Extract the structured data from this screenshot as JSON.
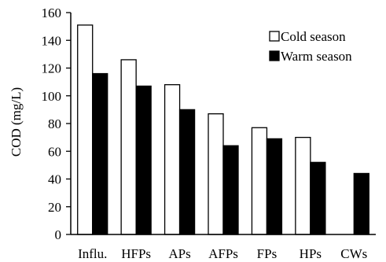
{
  "chart_data": {
    "type": "bar",
    "title": "",
    "xlabel": "",
    "ylabel": "COD (mg/L)",
    "ylim": [
      0,
      160
    ],
    "yticks": [
      0,
      20,
      40,
      60,
      80,
      100,
      120,
      140,
      160
    ],
    "grid": false,
    "legend_position": "top-right",
    "categories": [
      "Influ.",
      "HFPs",
      "APs",
      "AFPs",
      "FPs",
      "HPs",
      "CWs"
    ],
    "series": [
      {
        "name": "Cold season",
        "color": "#ffffff",
        "edge": "#000000",
        "values": [
          151,
          126,
          108,
          87,
          77,
          70,
          null
        ]
      },
      {
        "name": "Warm season",
        "color": "#000000",
        "edge": "#000000",
        "values": [
          116,
          107,
          90,
          64,
          69,
          52,
          44
        ]
      }
    ]
  }
}
